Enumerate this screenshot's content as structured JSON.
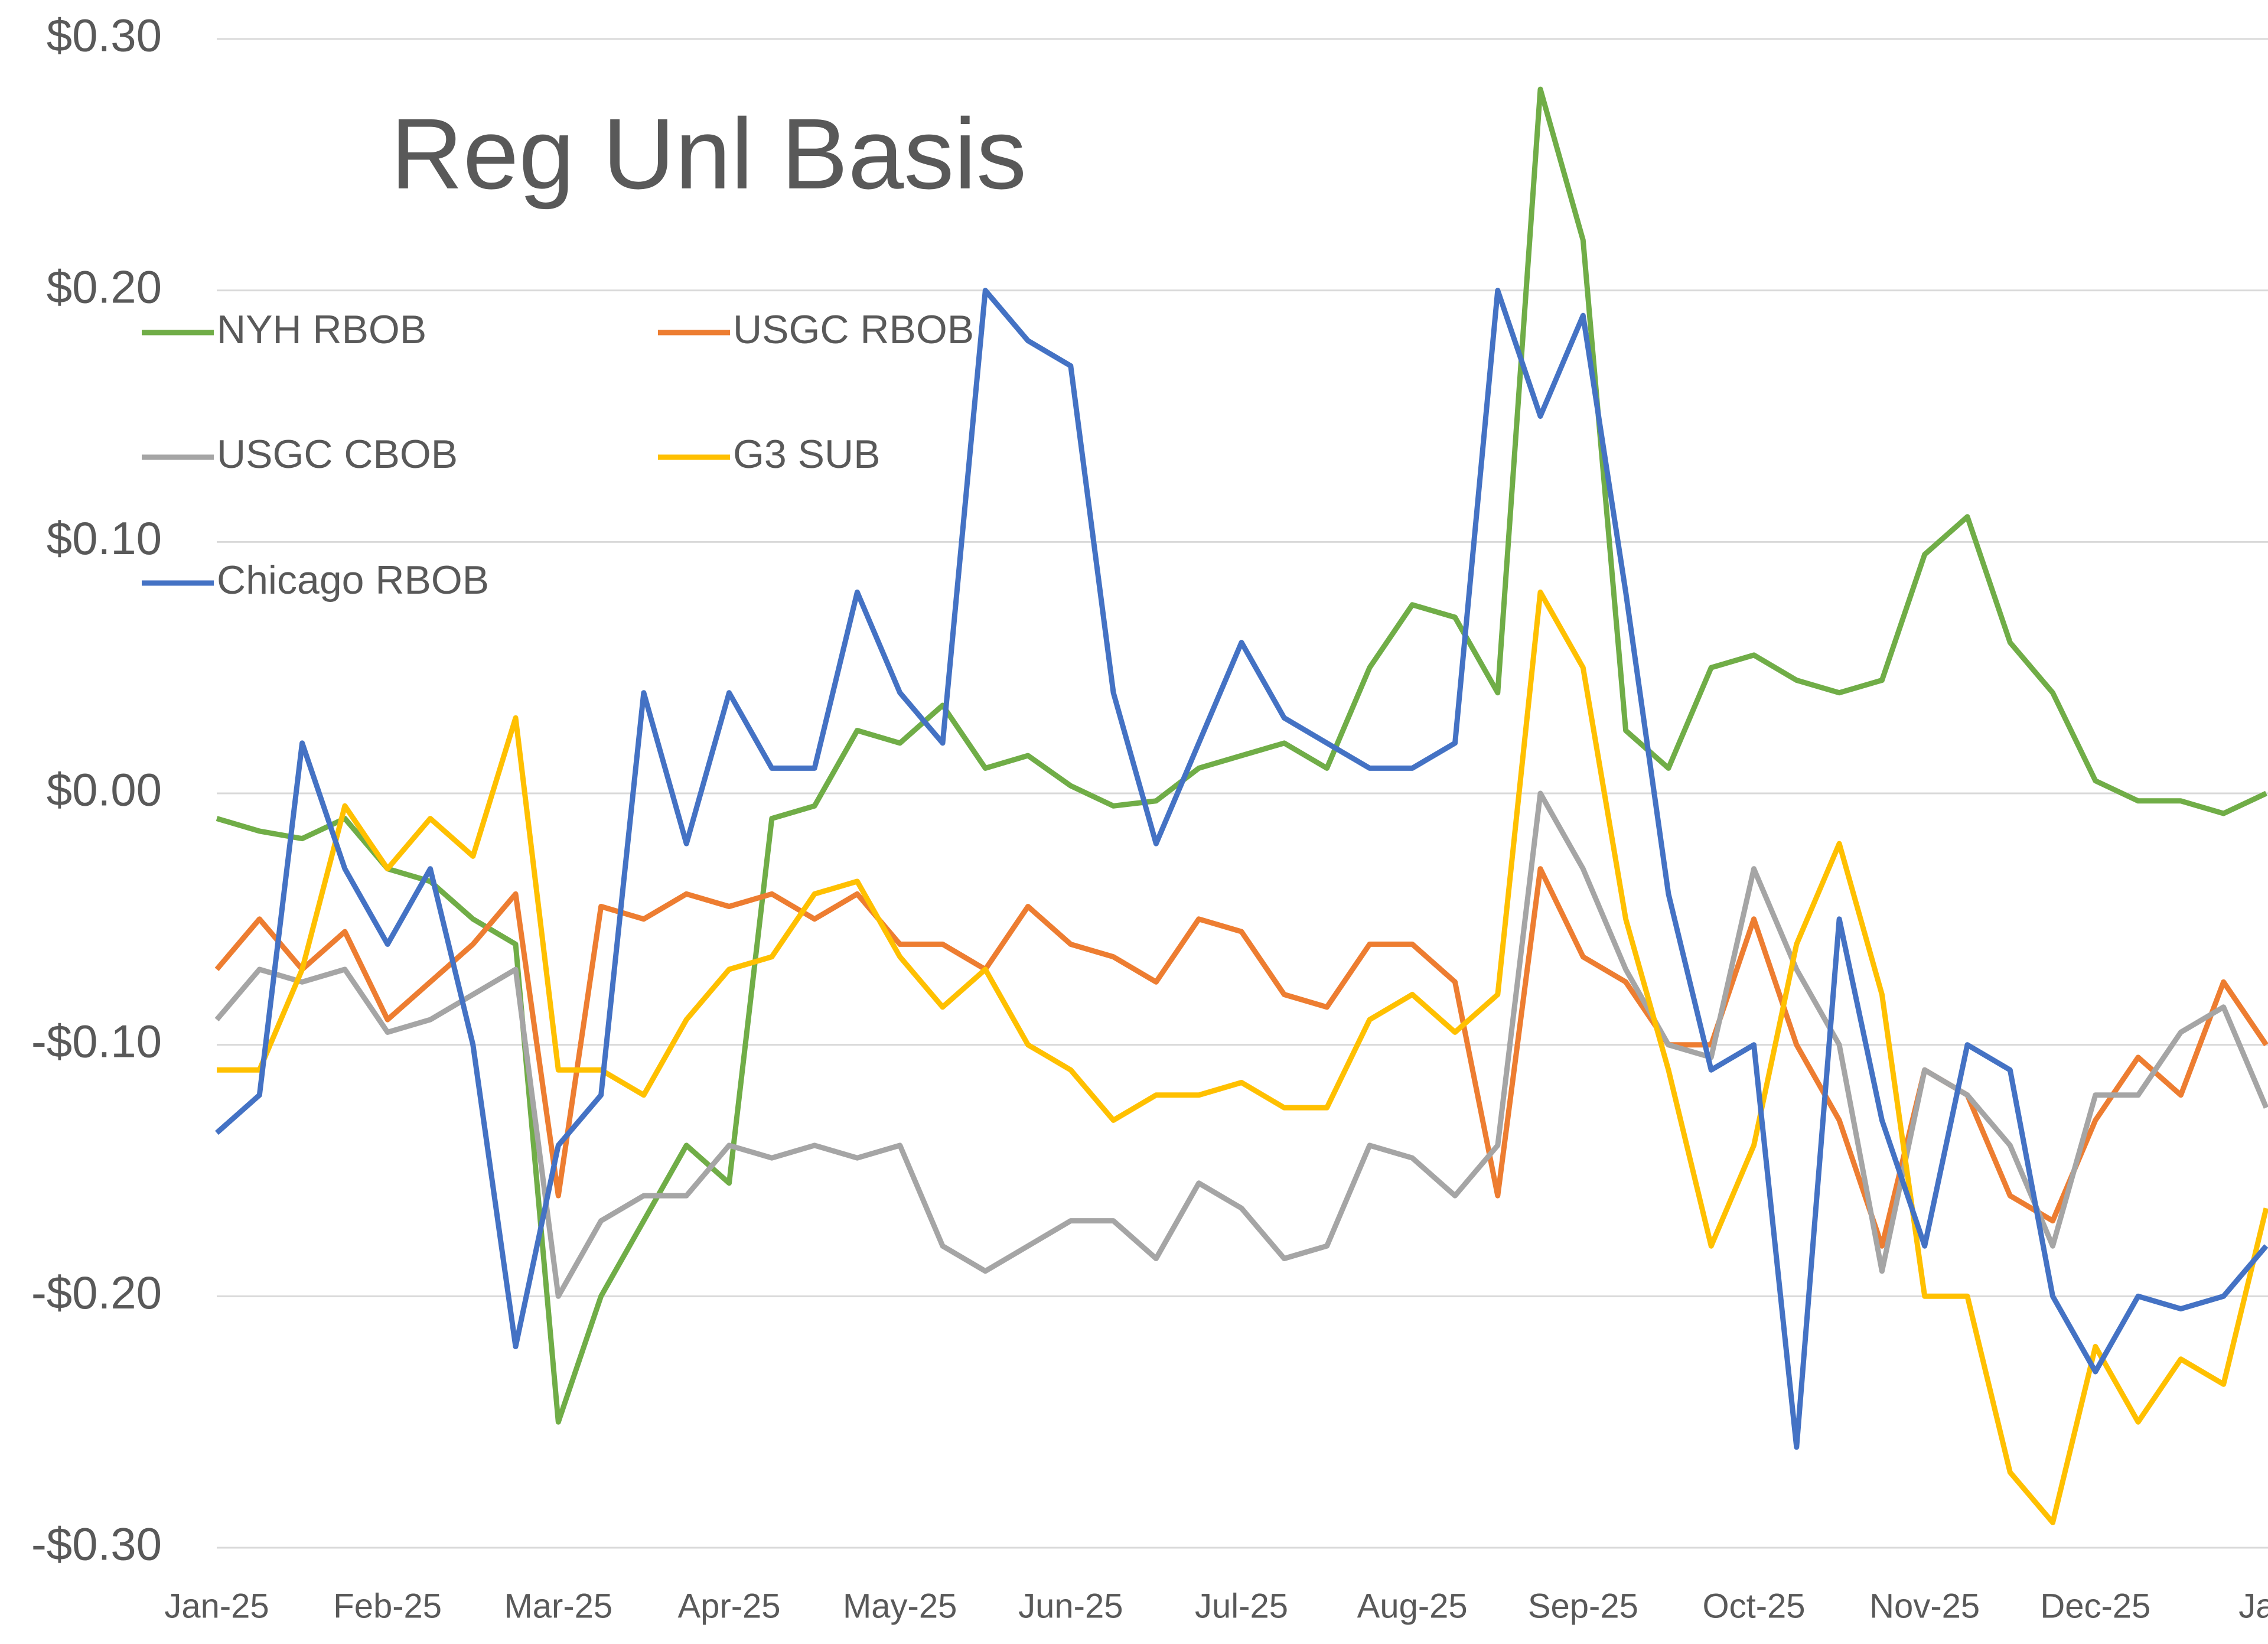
{
  "chart_data": {
    "type": "line",
    "title": "Reg Unl Basis",
    "categories": [
      "Jan-25",
      null,
      null,
      null,
      "Feb-25",
      null,
      null,
      null,
      "Mar-25",
      null,
      null,
      null,
      "Apr-25",
      null,
      null,
      null,
      "May-25",
      null,
      null,
      null,
      "Jun-25",
      null,
      null,
      null,
      "Jul-25",
      null,
      null,
      null,
      "Aug-25",
      null,
      null,
      null,
      "Sep-25",
      null,
      null,
      null,
      "Oct-25",
      null,
      null,
      null,
      "Nov-25",
      null,
      null,
      null,
      "Dec-25",
      null,
      null,
      null,
      "Jan"
    ],
    "series": [
      {
        "name": "NYH RBOB",
        "color": "#70ad47",
        "values": [
          -0.01,
          -0.015,
          -0.018,
          -0.01,
          -0.03,
          -0.035,
          -0.05,
          -0.06,
          -0.25,
          -0.2,
          -0.17,
          -0.14,
          -0.155,
          -0.01,
          -0.005,
          0.025,
          0.02,
          0.035,
          0.01,
          0.015,
          0.003,
          -0.005,
          -0.003,
          0.01,
          0.015,
          0.02,
          0.01,
          0.05,
          0.075,
          0.07,
          0.04,
          0.28,
          0.22,
          0.025,
          0.01,
          0.05,
          0.055,
          0.045,
          0.04,
          0.045,
          0.095,
          0.11,
          0.06,
          0.04,
          0.005,
          -0.003,
          -0.003,
          -0.008,
          0.0
        ]
      },
      {
        "name": "USGC RBOB",
        "color": "#ed7d31",
        "values": [
          -0.07,
          -0.05,
          -0.07,
          -0.055,
          -0.09,
          -0.075,
          -0.06,
          -0.04,
          -0.16,
          -0.045,
          -0.05,
          -0.04,
          -0.045,
          -0.04,
          -0.05,
          -0.04,
          -0.06,
          -0.06,
          -0.07,
          -0.045,
          -0.06,
          -0.065,
          -0.075,
          -0.05,
          -0.055,
          -0.08,
          -0.085,
          -0.06,
          -0.06,
          -0.075,
          -0.16,
          -0.03,
          -0.065,
          -0.075,
          -0.1,
          -0.1,
          -0.05,
          -0.1,
          -0.13,
          -0.18,
          -0.11,
          -0.12,
          -0.16,
          -0.17,
          -0.13,
          -0.105,
          -0.12,
          -0.075,
          -0.1
        ]
      },
      {
        "name": "USGC CBOB",
        "color": "#a5a5a5",
        "values": [
          -0.09,
          -0.07,
          -0.075,
          -0.07,
          -0.095,
          -0.09,
          -0.08,
          -0.07,
          -0.2,
          -0.17,
          -0.16,
          -0.16,
          -0.14,
          -0.145,
          -0.14,
          -0.145,
          -0.14,
          -0.18,
          -0.19,
          -0.18,
          -0.17,
          -0.17,
          -0.185,
          -0.155,
          -0.165,
          -0.185,
          -0.18,
          -0.14,
          -0.145,
          -0.16,
          -0.14,
          0.0,
          -0.03,
          -0.07,
          -0.1,
          -0.105,
          -0.03,
          -0.07,
          -0.1,
          -0.19,
          -0.11,
          -0.12,
          -0.14,
          -0.18,
          -0.12,
          -0.12,
          -0.095,
          -0.085,
          -0.125
        ]
      },
      {
        "name": "G3 SUB",
        "color": "#ffc000",
        "values": [
          -0.11,
          -0.11,
          -0.07,
          -0.005,
          -0.03,
          -0.01,
          -0.025,
          0.03,
          -0.11,
          -0.11,
          -0.12,
          -0.09,
          -0.07,
          -0.065,
          -0.04,
          -0.035,
          -0.065,
          -0.085,
          -0.07,
          -0.1,
          -0.11,
          -0.13,
          -0.12,
          -0.12,
          -0.115,
          -0.125,
          -0.125,
          -0.09,
          -0.08,
          -0.095,
          -0.08,
          0.08,
          0.05,
          -0.05,
          -0.11,
          -0.18,
          -0.14,
          -0.06,
          -0.02,
          -0.08,
          -0.2,
          -0.2,
          -0.27,
          -0.29,
          -0.22,
          -0.25,
          -0.225,
          -0.235,
          -0.165
        ]
      },
      {
        "name": "Chicago RBOB",
        "color": "#4472c4",
        "values": [
          -0.135,
          -0.12,
          0.02,
          -0.03,
          -0.06,
          -0.03,
          -0.1,
          -0.22,
          -0.14,
          -0.12,
          0.04,
          -0.02,
          0.04,
          0.01,
          0.01,
          0.08,
          0.04,
          0.02,
          0.2,
          0.18,
          0.17,
          0.04,
          -0.02,
          0.02,
          0.06,
          0.03,
          0.02,
          0.01,
          0.01,
          0.02,
          0.2,
          0.15,
          0.19,
          0.08,
          -0.04,
          -0.11,
          -0.1,
          -0.26,
          -0.05,
          -0.13,
          -0.18,
          -0.1,
          -0.11,
          -0.2,
          -0.23,
          -0.2,
          -0.205,
          -0.2,
          -0.18
        ]
      }
    ],
    "ylim": [
      -0.3,
      0.3
    ],
    "yticks": [
      {
        "value": -0.3,
        "label": "-$0.30"
      },
      {
        "value": -0.2,
        "label": "-$0.20"
      },
      {
        "value": -0.1,
        "label": "-$0.10"
      },
      {
        "value": 0,
        "label": "$0.00"
      },
      {
        "value": 0.1,
        "label": "$0.10"
      },
      {
        "value": 0.2,
        "label": "$0.20"
      },
      {
        "value": 0.3,
        "label": "$0.30"
      }
    ],
    "grid": true
  }
}
